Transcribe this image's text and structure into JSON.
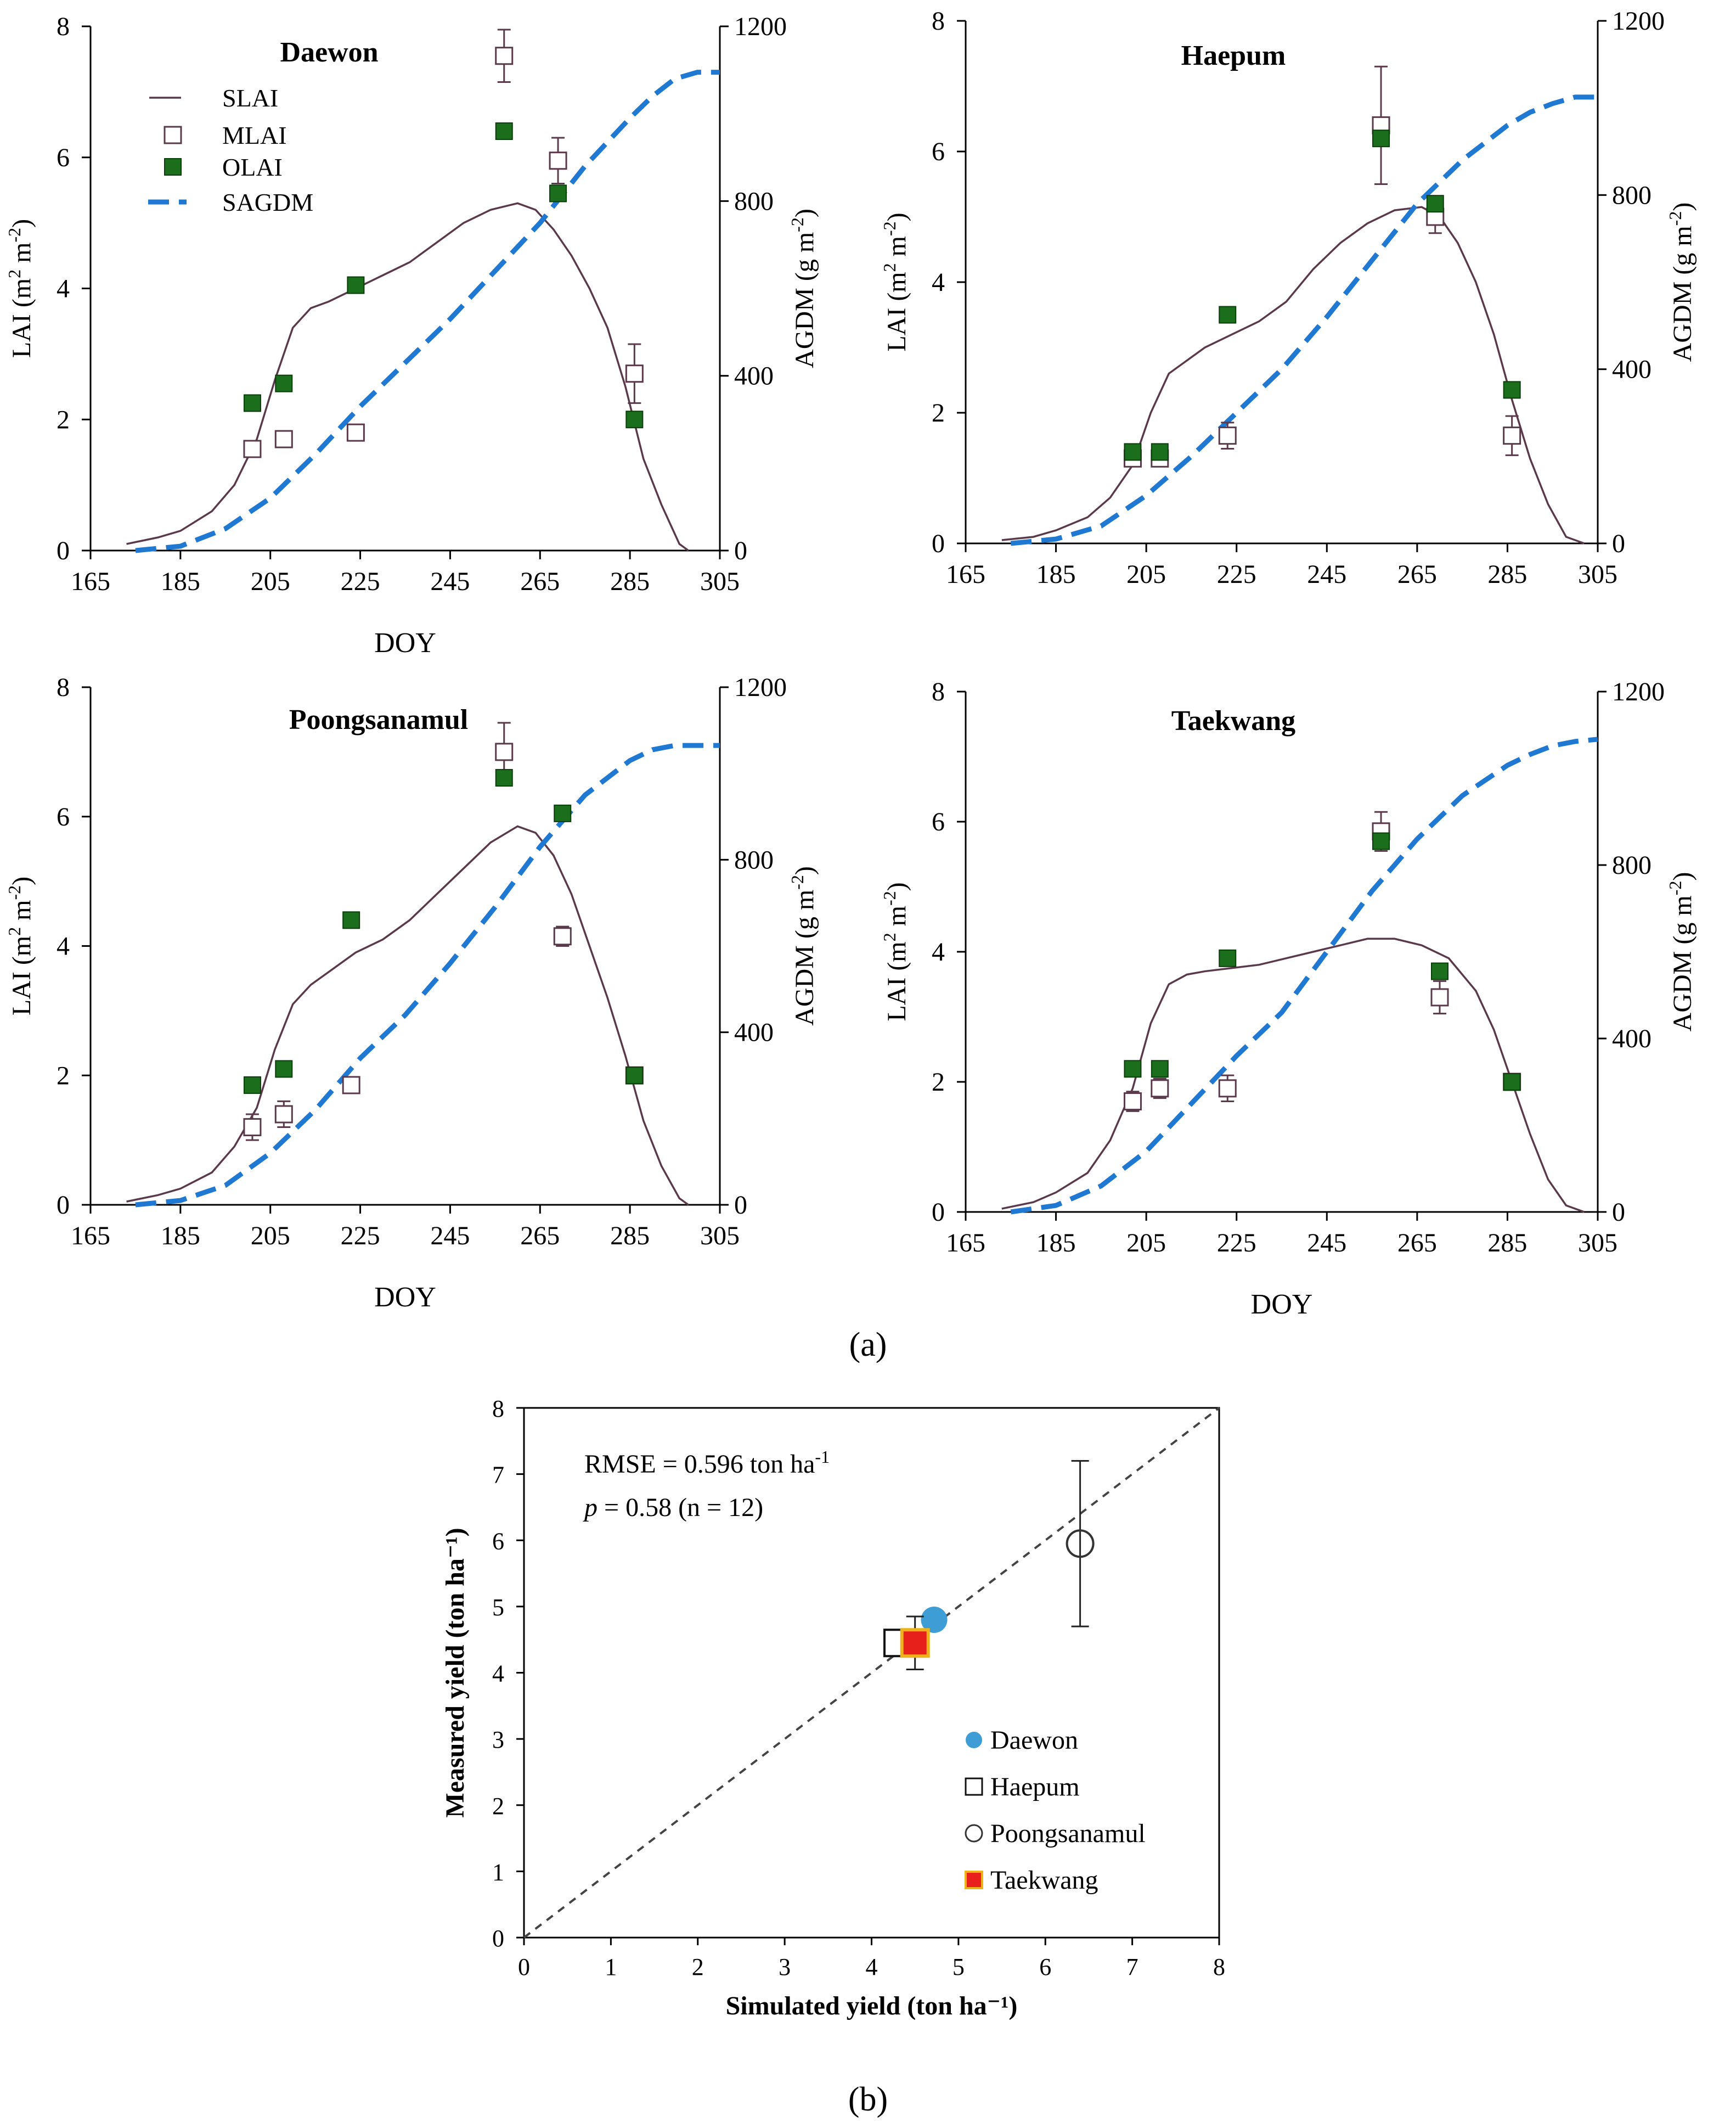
{
  "figure_labels": {
    "a": "(a)",
    "b": "(b)"
  },
  "colors": {
    "slai": "#5a3a4a",
    "sagdm": "#1f78d1",
    "olai_fill": "#1b6e1b",
    "mlai_stroke": "#5a3a4a",
    "daewon": "#3d9dd4",
    "taekwang_fill": "#e8201c",
    "taekwang_edge": "#f0b21b",
    "axis": "#000000"
  },
  "legend_a": [
    {
      "label": "SLAI",
      "icon": "line-icon"
    },
    {
      "label": "MLAI",
      "icon": "open-square-icon"
    },
    {
      "label": "OLAI",
      "icon": "filled-square-icon"
    },
    {
      "label": "SAGDM",
      "icon": "dashed-line-icon"
    }
  ],
  "chart_data": [
    {
      "type": "line",
      "title": "Daewon",
      "xlabel": "DOY",
      "ylabel": "LAI (m2 m-2)",
      "y2label": "AGDM (g m-2)",
      "xlim": [
        165,
        305
      ],
      "ylim": [
        0,
        8
      ],
      "y2lim": [
        0,
        1200
      ],
      "xticks": [
        165,
        185,
        205,
        225,
        245,
        265,
        285,
        305
      ],
      "yticks": [
        0,
        2,
        4,
        6,
        8
      ],
      "y2ticks": [
        0,
        400,
        800,
        1200
      ],
      "series": [
        {
          "name": "SLAI",
          "x": [
            173,
            180,
            185,
            192,
            197,
            202,
            206,
            210,
            214,
            218,
            224,
            230,
            236,
            242,
            248,
            254,
            260,
            264,
            268,
            272,
            276,
            280,
            284,
            288,
            292,
            296,
            298
          ],
          "y": [
            0.1,
            0.2,
            0.3,
            0.6,
            1.0,
            1.7,
            2.6,
            3.4,
            3.7,
            3.8,
            4.0,
            4.2,
            4.4,
            4.7,
            5.0,
            5.2,
            5.3,
            5.2,
            4.9,
            4.5,
            4.0,
            3.4,
            2.5,
            1.4,
            0.7,
            0.1,
            0.0
          ]
        },
        {
          "name": "SAGDM",
          "x": [
            175,
            185,
            195,
            205,
            215,
            225,
            235,
            245,
            255,
            265,
            275,
            285,
            290,
            295,
            300,
            305
          ],
          "y2": [
            0,
            10,
            50,
            120,
            220,
            330,
            430,
            530,
            640,
            750,
            880,
            990,
            1040,
            1080,
            1095,
            1095
          ]
        },
        {
          "name": "MLAI",
          "x": [
            201,
            208,
            224,
            257,
            269,
            286
          ],
          "y": [
            1.55,
            1.7,
            1.8,
            7.55,
            5.95,
            2.7
          ],
          "err": [
            0.1,
            0.1,
            0.1,
            0.4,
            0.35,
            0.45
          ]
        },
        {
          "name": "OLAI",
          "x": [
            201,
            208,
            224,
            257,
            269,
            286
          ],
          "y": [
            2.25,
            2.55,
            4.05,
            6.4,
            5.45,
            2.0
          ]
        }
      ]
    },
    {
      "type": "line",
      "title": "Haepum",
      "xlabel": "",
      "ylabel": "LAI (m2 m-2)",
      "y2label": "AGDM (g m-2)",
      "xlim": [
        165,
        305
      ],
      "ylim": [
        0,
        8
      ],
      "y2lim": [
        0,
        1200
      ],
      "xticks": [
        165,
        185,
        205,
        225,
        245,
        265,
        285,
        305
      ],
      "yticks": [
        0,
        2,
        4,
        6,
        8
      ],
      "y2ticks": [
        0,
        400,
        800,
        1200
      ],
      "series": [
        {
          "name": "SLAI",
          "x": [
            173,
            180,
            185,
            192,
            197,
            202,
            206,
            210,
            214,
            218,
            224,
            230,
            236,
            242,
            248,
            254,
            260,
            266,
            270,
            274,
            278,
            282,
            286,
            290,
            294,
            298,
            302
          ],
          "y": [
            0.05,
            0.1,
            0.2,
            0.4,
            0.7,
            1.2,
            2.0,
            2.6,
            2.8,
            3.0,
            3.2,
            3.4,
            3.7,
            4.2,
            4.6,
            4.9,
            5.1,
            5.15,
            5.0,
            4.6,
            4.0,
            3.2,
            2.2,
            1.3,
            0.6,
            0.1,
            0.0
          ]
        },
        {
          "name": "SAGDM",
          "x": [
            175,
            185,
            195,
            205,
            215,
            225,
            235,
            245,
            255,
            265,
            275,
            285,
            290,
            295,
            300,
            305
          ],
          "y2": [
            0,
            10,
            40,
            110,
            200,
            300,
            400,
            520,
            650,
            780,
            880,
            960,
            990,
            1010,
            1025,
            1025
          ]
        },
        {
          "name": "MLAI",
          "x": [
            202,
            208,
            223,
            257,
            269,
            286
          ],
          "y": [
            1.3,
            1.3,
            1.65,
            6.4,
            5.0,
            1.65
          ],
          "err": [
            0.1,
            0.1,
            0.2,
            0.9,
            0.25,
            0.3
          ]
        },
        {
          "name": "OLAI",
          "x": [
            202,
            208,
            223,
            257,
            269,
            286
          ],
          "y": [
            1.4,
            1.4,
            3.5,
            6.2,
            5.2,
            2.35
          ]
        }
      ]
    },
    {
      "type": "line",
      "title": "Poongsanamul",
      "xlabel": "DOY",
      "ylabel": "LAI (m2 m-2)",
      "y2label": "AGDM (g m-2)",
      "xlim": [
        165,
        305
      ],
      "ylim": [
        0,
        8
      ],
      "y2lim": [
        0,
        1200
      ],
      "xticks": [
        165,
        185,
        205,
        225,
        245,
        265,
        285,
        305
      ],
      "yticks": [
        0,
        2,
        4,
        6,
        8
      ],
      "y2ticks": [
        0,
        400,
        800,
        1200
      ],
      "series": [
        {
          "name": "SLAI",
          "x": [
            173,
            180,
            185,
            192,
            197,
            202,
            206,
            210,
            214,
            218,
            224,
            230,
            236,
            242,
            248,
            254,
            260,
            264,
            268,
            272,
            276,
            280,
            284,
            288,
            292,
            296,
            298
          ],
          "y": [
            0.05,
            0.15,
            0.25,
            0.5,
            0.9,
            1.5,
            2.4,
            3.1,
            3.4,
            3.6,
            3.9,
            4.1,
            4.4,
            4.8,
            5.2,
            5.6,
            5.85,
            5.75,
            5.4,
            4.8,
            4.0,
            3.2,
            2.3,
            1.3,
            0.6,
            0.1,
            0.0
          ]
        },
        {
          "name": "SAGDM",
          "x": [
            175,
            185,
            195,
            205,
            215,
            225,
            235,
            245,
            255,
            265,
            275,
            285,
            290,
            295,
            300,
            305
          ],
          "y2": [
            0,
            10,
            45,
            120,
            220,
            340,
            440,
            560,
            690,
            830,
            950,
            1030,
            1055,
            1065,
            1065,
            1065
          ]
        },
        {
          "name": "MLAI",
          "x": [
            201,
            208,
            223,
            257,
            270,
            286
          ],
          "y": [
            1.2,
            1.4,
            1.85,
            7.0,
            4.15,
            2.0
          ],
          "err": [
            0.2,
            0.2,
            0.1,
            0.45,
            0.15,
            0.1
          ]
        },
        {
          "name": "OLAI",
          "x": [
            201,
            208,
            223,
            257,
            270,
            286
          ],
          "y": [
            1.85,
            2.1,
            4.4,
            6.6,
            6.05,
            2.0
          ]
        }
      ]
    },
    {
      "type": "line",
      "title": "Taekwang",
      "xlabel": "DOY",
      "ylabel": "LAI (m2 m-2)",
      "y2label": "AGDM (g m-2)",
      "xlim": [
        165,
        305
      ],
      "ylim": [
        0,
        8
      ],
      "y2lim": [
        0,
        1200
      ],
      "xticks": [
        165,
        185,
        205,
        225,
        245,
        265,
        285,
        305
      ],
      "yticks": [
        0,
        2,
        4,
        6,
        8
      ],
      "y2ticks": [
        0,
        400,
        800,
        1200
      ],
      "series": [
        {
          "name": "SLAI",
          "x": [
            173,
            180,
            185,
            192,
            197,
            202,
            206,
            210,
            214,
            218,
            224,
            230,
            236,
            242,
            248,
            254,
            260,
            266,
            272,
            278,
            282,
            286,
            290,
            294,
            298,
            302
          ],
          "y": [
            0.05,
            0.15,
            0.3,
            0.6,
            1.1,
            1.9,
            2.9,
            3.5,
            3.65,
            3.7,
            3.75,
            3.8,
            3.9,
            4.0,
            4.1,
            4.2,
            4.2,
            4.1,
            3.9,
            3.4,
            2.8,
            2.0,
            1.2,
            0.5,
            0.1,
            0.0
          ]
        },
        {
          "name": "SAGDM",
          "x": [
            175,
            185,
            195,
            205,
            215,
            225,
            235,
            245,
            255,
            265,
            275,
            285,
            290,
            295,
            300,
            305
          ],
          "y2": [
            0,
            15,
            60,
            140,
            250,
            360,
            460,
            600,
            740,
            860,
            960,
            1030,
            1055,
            1075,
            1085,
            1090
          ]
        },
        {
          "name": "MLAI",
          "x": [
            202,
            208,
            223,
            257,
            270,
            286
          ],
          "y": [
            1.7,
            1.9,
            1.9,
            5.85,
            3.3,
            2.0
          ],
          "err": [
            0.15,
            0.15,
            0.2,
            0.3,
            0.25,
            0.1
          ]
        },
        {
          "name": "OLAI",
          "x": [
            202,
            208,
            223,
            257,
            270,
            286
          ],
          "y": [
            2.2,
            2.2,
            3.9,
            5.7,
            3.7,
            2.0
          ]
        }
      ]
    },
    {
      "type": "scatter",
      "xlabel": "Simulated yield (ton ha⁻¹)",
      "ylabel": "Measured yield (ton ha⁻¹)",
      "xlim": [
        0,
        8
      ],
      "ylim": [
        0,
        8
      ],
      "xticks": [
        0,
        1,
        2,
        3,
        4,
        5,
        6,
        7,
        8
      ],
      "yticks": [
        0,
        1,
        2,
        3,
        4,
        5,
        6,
        7,
        8
      ],
      "annotation": {
        "rmse_label": "RMSE  = 0.596  ton ha",
        "rmse_unit_sup": "-1",
        "p_label": "p",
        "p_text": " = 0.58  (n = 12)"
      },
      "reference_line": "1:1",
      "series": [
        {
          "name": "Daewon",
          "marker": "filled-circle",
          "x": 4.72,
          "y": 4.8,
          "err": 0.1
        },
        {
          "name": "Haepum",
          "marker": "open-square",
          "x": 4.3,
          "y": 4.45,
          "err": 0.1
        },
        {
          "name": "Poongsanamul",
          "marker": "open-circle",
          "x": 6.4,
          "y": 5.95,
          "err": 1.25
        },
        {
          "name": "Taekwang",
          "marker": "filled-square",
          "x": 4.5,
          "y": 4.45,
          "err": 0.4
        }
      ]
    }
  ]
}
